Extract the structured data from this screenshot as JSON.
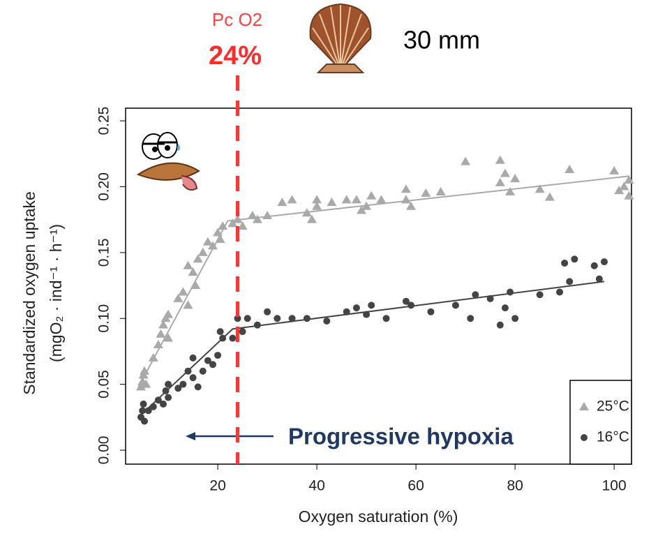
{
  "chart_data": {
    "type": "scatter",
    "x_label": "Oxygen saturation (%)",
    "y_label": [
      "Standardized oxygen uptake",
      "(mgO₂ · ind⁻¹ · h⁻¹)"
    ],
    "xlim": [
      1.4,
      103.5
    ],
    "ylim": [
      -0.0106,
      0.2596
    ],
    "xticks": [
      20,
      40,
      60,
      80,
      100
    ],
    "yticks": [
      {
        "value": 0,
        "label": "0.00"
      },
      {
        "value": 0.05,
        "label": "0.05"
      },
      {
        "value": 0.1,
        "label": "0.10"
      },
      {
        "value": 0.15,
        "label": "0.15"
      },
      {
        "value": 0.2,
        "label": "0.20"
      },
      {
        "value": 0.25,
        "label": "0.25"
      }
    ],
    "legend": "lower right",
    "series": [
      {
        "name": "25°C",
        "color": "#a9a9a9",
        "marker": "triangle",
        "x": [
          4.5,
          4.8,
          5,
          5.2,
          5.5,
          7,
          8,
          8.5,
          9,
          9.5,
          10,
          10,
          12,
          13,
          14,
          14,
          15,
          15.5,
          16,
          17,
          18,
          19,
          20,
          20.5,
          21,
          23,
          24,
          25,
          27,
          28,
          30,
          33,
          35,
          38,
          39,
          40,
          40,
          43,
          46,
          48,
          49,
          50,
          51,
          53,
          58,
          58,
          59,
          62,
          65,
          70,
          77,
          77,
          78,
          79,
          80,
          85,
          87,
          91,
          100,
          101,
          103,
          103,
          102
        ],
        "values": [
          0.048,
          0.052,
          0.057,
          0.06,
          0.05,
          0.07,
          0.08,
          0.088,
          0.095,
          0.1,
          0.103,
          0.085,
          0.115,
          0.12,
          0.11,
          0.14,
          0.135,
          0.125,
          0.145,
          0.15,
          0.158,
          0.155,
          0.165,
          0.16,
          0.17,
          0.172,
          0.175,
          0.17,
          0.178,
          0.175,
          0.178,
          0.188,
          0.19,
          0.18,
          0.175,
          0.185,
          0.19,
          0.188,
          0.19,
          0.19,
          0.182,
          0.185,
          0.193,
          0.19,
          0.19,
          0.198,
          0.185,
          0.195,
          0.196,
          0.219,
          0.22,
          0.203,
          0.21,
          0.196,
          0.206,
          0.198,
          0.192,
          0.213,
          0.212,
          0.197,
          0.205,
          0.193,
          0.2
        ],
        "fit": {
          "x": [
            4,
            22,
            103
          ],
          "values": [
            0.048,
            0.174,
            0.208
          ]
        }
      },
      {
        "name": "16°C",
        "color": "#444444",
        "marker": "circle",
        "x": [
          4.5,
          4.8,
          5,
          5.2,
          6,
          7,
          8,
          9,
          9.5,
          10,
          10,
          12,
          13,
          14,
          15,
          15,
          16,
          17,
          18,
          19,
          20,
          20.5,
          21,
          23,
          24,
          25,
          26,
          28,
          30,
          32,
          35,
          38,
          42,
          46,
          48,
          50,
          51,
          54,
          58,
          59,
          63,
          68,
          71,
          72,
          75,
          77,
          78,
          79,
          80,
          85,
          89,
          90,
          91,
          92,
          96,
          97,
          98
        ],
        "values": [
          0.025,
          0.03,
          0.035,
          0.022,
          0.03,
          0.033,
          0.038,
          0.035,
          0.045,
          0.05,
          0.04,
          0.047,
          0.05,
          0.06,
          0.055,
          0.07,
          0.048,
          0.06,
          0.068,
          0.065,
          0.072,
          0.09,
          0.085,
          0.085,
          0.1,
          0.09,
          0.1,
          0.095,
          0.105,
          0.1,
          0.1,
          0.1,
          0.098,
          0.105,
          0.108,
          0.103,
          0.11,
          0.1,
          0.113,
          0.11,
          0.105,
          0.11,
          0.1,
          0.118,
          0.115,
          0.095,
          0.108,
          0.12,
          0.1,
          0.118,
          0.12,
          0.142,
          0.128,
          0.145,
          0.14,
          0.13,
          0.143
        ],
        "fit": {
          "x": [
            4,
            23,
            98
          ],
          "values": [
            0.025,
            0.092,
            0.128
          ]
        }
      }
    ],
    "critical_line": {
      "title": "Pc O2",
      "value": 24,
      "label": "24%"
    },
    "size_note": "30 mm",
    "arrow_note": "Progressive hypoxia"
  }
}
